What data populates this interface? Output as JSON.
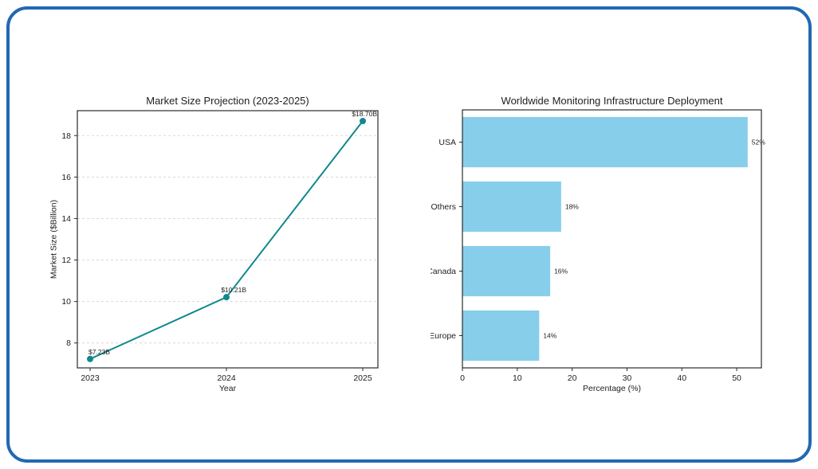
{
  "page": {
    "border_color": "#2268b2",
    "background": "#ffffff",
    "text_color": "#1f1f1f",
    "grid_color": "#d9d9d9",
    "axis_color": "#2b2b2b"
  },
  "chart_data": [
    {
      "type": "line",
      "title": "Market Size Projection (2023-2025)",
      "xlabel": "Year",
      "ylabel": "Market Size ($Billion)",
      "categories": [
        "2023",
        "2024",
        "2025"
      ],
      "values": [
        7.23,
        10.21,
        18.7
      ],
      "point_labels": [
        "$7.23B",
        "$10.21B",
        "$18.70B"
      ],
      "yticks": [
        8,
        10,
        12,
        14,
        16,
        18
      ],
      "ylim": [
        6.8,
        19.2
      ],
      "line_color": "#10898d",
      "grid": true,
      "legend": "none"
    },
    {
      "type": "bar",
      "orientation": "horizontal",
      "title": "Worldwide Monitoring Infrastructure Deployment",
      "xlabel": "Percentage (%)",
      "ylabel": "",
      "categories": [
        "USA",
        "Others",
        "Urban Canada",
        "Developed Europe"
      ],
      "values": [
        52,
        18,
        16,
        14
      ],
      "value_labels": [
        "52%",
        "18%",
        "16%",
        "14%"
      ],
      "xticks": [
        0,
        10,
        20,
        30,
        40,
        50
      ],
      "xlim": [
        0,
        54.5
      ],
      "bar_color": "#87CEEB",
      "grid": false,
      "legend": "none"
    }
  ]
}
